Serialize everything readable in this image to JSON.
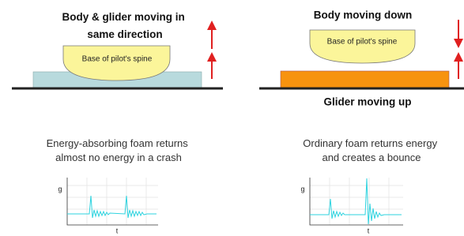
{
  "left": {
    "title": [
      "Body & glider moving in",
      "same direction"
    ],
    "spine_label": "Base of pilot's spine",
    "caption": [
      "Energy-absorbing foam returns",
      "almost no energy in a crash"
    ],
    "graph": {
      "y_label": "g",
      "x_label": "t"
    }
  },
  "right": {
    "title": "Body moving down",
    "spine_label": "Base of pilot's spine",
    "bottom_label": "Glider moving up",
    "caption": [
      "Ordinary foam returns energy",
      "and creates a bounce"
    ],
    "graph": {
      "y_label": "g",
      "x_label": "t"
    }
  }
}
